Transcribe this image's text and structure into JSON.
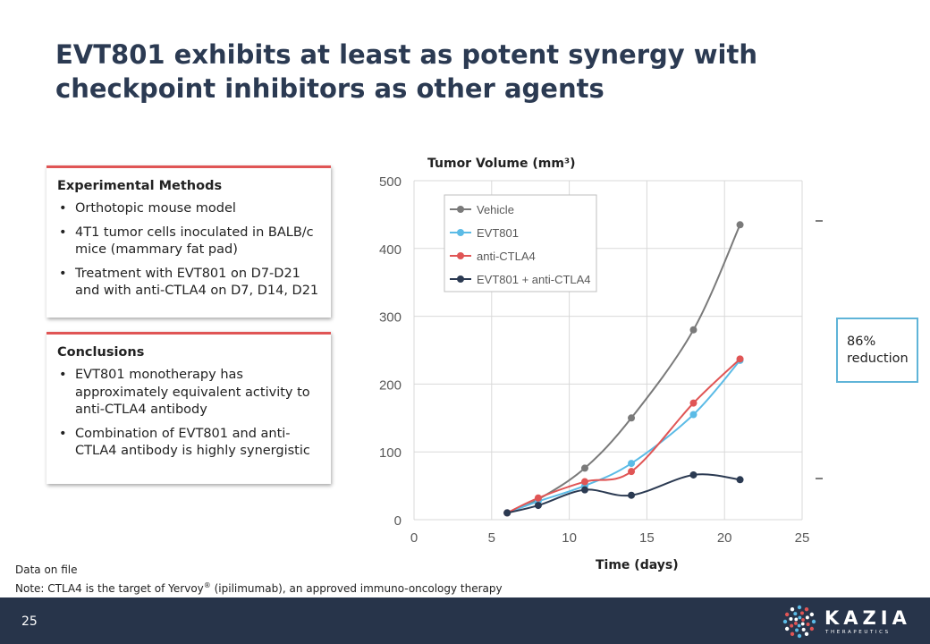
{
  "title": "EVT801 exhibits at least as potent synergy with checkpoint inhibitors as other agents",
  "methods": {
    "heading": "Experimental Methods",
    "items": [
      "Orthotopic mouse model",
      "4T1 tumor cells inoculated in BALB/c mice (mammary fat pad)",
      "Treatment with EVT801 on D7-D21 and with anti-CTLA4 on D7, D14, D21"
    ]
  },
  "conclusions": {
    "heading": "Conclusions",
    "items": [
      "EVT801 monotherapy has approximately equivalent activity to anti-CTLA4 antibody",
      "Combination of EVT801 and anti-CTLA4 antibody is highly synergistic"
    ]
  },
  "chart_data": {
    "type": "line",
    "title": "Tumor Volume (mm³)",
    "xlabel": "Time (days)",
    "ylabel": "",
    "xlim": [
      0,
      25
    ],
    "ylim": [
      0,
      500
    ],
    "xticks": [
      0,
      5,
      10,
      15,
      20,
      25
    ],
    "yticks": [
      0,
      100,
      200,
      300,
      400,
      500
    ],
    "grid": true,
    "legend": "top-left",
    "x": [
      6,
      8,
      11,
      14,
      18,
      21
    ],
    "series": [
      {
        "name": "Vehicle",
        "color": "#7a7a7a",
        "values": [
          10,
          30,
          76,
          150,
          280,
          435
        ]
      },
      {
        "name": "EVT801",
        "color": "#5bbbe6",
        "values": [
          10,
          27,
          50,
          83,
          155,
          235
        ]
      },
      {
        "name": "anti-CTLA4",
        "color": "#e05555",
        "values": [
          10,
          32,
          56,
          71,
          172,
          237
        ]
      },
      {
        "name": "EVT801 + anti-CTLA4",
        "color": "#2b3a52",
        "values": [
          10,
          21,
          44,
          36,
          66,
          59
        ]
      }
    ],
    "annotation": "86% reduction"
  },
  "footnotes": {
    "line1": "Data on file",
    "line2_pre": "Note: CTLA4 is the target of Yervoy",
    "line2_sup": "®",
    "line2_post": " (ipilimumab), an approved immuno-oncology therapy"
  },
  "footer": {
    "page_number": "25",
    "logo_word": "KAZIA",
    "logo_sub": "THERAPEUTICS",
    "bg_color": "#27344a"
  }
}
